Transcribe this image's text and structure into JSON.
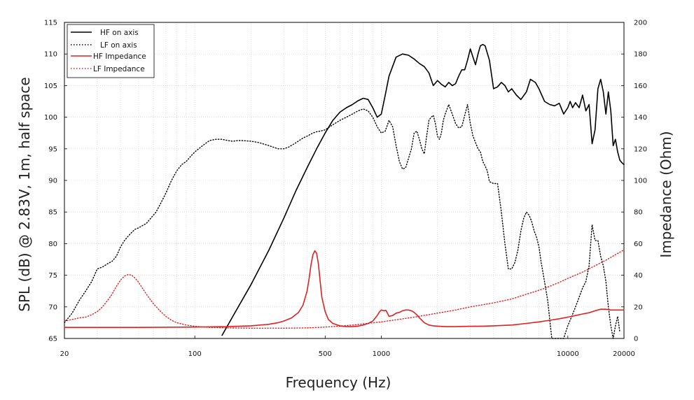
{
  "chart_data": {
    "type": "line",
    "xlabel": "Frequency (Hz)",
    "ylabel": "SPL (dB) @ 2.83V, 1m, half space",
    "y2label": "Impedance (Ohm)",
    "xscale": "log",
    "xlim": [
      20,
      20000
    ],
    "ylim": [
      65,
      115
    ],
    "y2lim": [
      0,
      200
    ],
    "x_ticks": [
      20,
      100,
      500,
      1000,
      10000,
      20000
    ],
    "x_tick_labels": [
      "20",
      "100",
      "500",
      "1000",
      "10000",
      "20000"
    ],
    "y_ticks": [
      65,
      70,
      75,
      80,
      85,
      90,
      95,
      100,
      105,
      110,
      115
    ],
    "y2_ticks": [
      0,
      20,
      40,
      60,
      80,
      100,
      120,
      140,
      160,
      180,
      200
    ],
    "grid": true,
    "legend_position": "top-left",
    "colors": {
      "hf": "#000000",
      "lf": "#000000",
      "hf_imp": "#e02020",
      "lf_imp": "#e02020"
    },
    "series": [
      {
        "name": "HF on axis",
        "axis": "left",
        "style": "solid",
        "color": "#000000",
        "x": [
          140,
          160,
          200,
          250,
          300,
          350,
          400,
          450,
          500,
          550,
          600,
          650,
          700,
          750,
          800,
          850,
          900,
          950,
          1000,
          1050,
          1100,
          1200,
          1300,
          1400,
          1500,
          1600,
          1700,
          1800,
          1900,
          2000,
          2100,
          2200,
          2300,
          2400,
          2500,
          2600,
          2700,
          2800,
          2900,
          3000,
          3100,
          3200,
          3300,
          3400,
          3500,
          3600,
          3800,
          4000,
          4200,
          4400,
          4600,
          4800,
          5000,
          5300,
          5600,
          6000,
          6300,
          6700,
          7000,
          7500,
          8000,
          8500,
          9000,
          9500,
          10000,
          10300,
          10600,
          11000,
          11500,
          12000,
          12500,
          13000,
          13500,
          14000,
          14500,
          15000,
          15500,
          16000,
          16500,
          17000,
          17500,
          18000,
          18500,
          19000,
          19500,
          20000
        ],
        "y": [
          65.5,
          68.5,
          73.5,
          79,
          84,
          88.5,
          92,
          95,
          97.5,
          99.5,
          100.8,
          101.5,
          102,
          102.6,
          103,
          102.8,
          101.5,
          100,
          100.5,
          103.5,
          106.5,
          109.5,
          110,
          109.8,
          109.2,
          108.5,
          108,
          107,
          105,
          105.8,
          105.2,
          104.8,
          105.5,
          105,
          105.3,
          106.5,
          107.5,
          107.5,
          109,
          110.8,
          109.5,
          108.3,
          110,
          111.3,
          111.5,
          111.3,
          109,
          104.5,
          104.8,
          105.5,
          105,
          104,
          104.5,
          103.5,
          102.8,
          104,
          106,
          105.5,
          104.5,
          102.5,
          102,
          101.8,
          102.2,
          100.5,
          101.5,
          102.5,
          101.5,
          102.3,
          101.5,
          103.5,
          101,
          102,
          95.8,
          98,
          104.5,
          106,
          104,
          100.5,
          104,
          101,
          95.5,
          96.5,
          94.5,
          93.2,
          92.8,
          92.5
        ]
      },
      {
        "name": "LF on axis",
        "axis": "left",
        "style": "dotted",
        "color": "#000000",
        "x": [
          20,
          22,
          24,
          26,
          28,
          30,
          32,
          34,
          36,
          38,
          40,
          42,
          44,
          46,
          48,
          50,
          52,
          55,
          58,
          62,
          66,
          70,
          75,
          80,
          85,
          90,
          95,
          100,
          110,
          120,
          130,
          140,
          150,
          160,
          170,
          180,
          200,
          220,
          250,
          280,
          300,
          320,
          350,
          380,
          400,
          430,
          450,
          470,
          500,
          550,
          600,
          650,
          700,
          750,
          800,
          850,
          900,
          950,
          1000,
          1050,
          1100,
          1150,
          1200,
          1250,
          1300,
          1350,
          1400,
          1450,
          1500,
          1550,
          1600,
          1650,
          1700,
          1750,
          1800,
          1850,
          1900,
          1950,
          2000,
          2050,
          2100,
          2150,
          2200,
          2300,
          2400,
          2500,
          2600,
          2700,
          2800,
          2900,
          3000,
          3100,
          3200,
          3300,
          3400,
          3500,
          3600,
          3700,
          3800,
          4000,
          4200,
          4400,
          4600,
          4800,
          5000,
          5200,
          5400,
          5600,
          5800,
          6000,
          6200,
          6400,
          6600,
          6800,
          7000,
          7200,
          7400,
          7600,
          7800,
          8000,
          8200,
          8400,
          8600,
          9000,
          9500,
          10000,
          10500,
          11000,
          11500,
          12000,
          12500,
          13000,
          13500,
          14000,
          14500,
          15000,
          15500,
          16000,
          16500,
          17000,
          17500,
          18000,
          18500,
          19000
        ],
        "y": [
          67.5,
          69,
          71,
          72.5,
          74,
          76,
          76.3,
          76.8,
          77.2,
          78,
          79.5,
          80.5,
          81.2,
          81.8,
          82.3,
          82.5,
          82.8,
          83.2,
          84,
          85,
          86.5,
          88,
          90,
          91.5,
          92.5,
          93,
          93.8,
          94.5,
          95.5,
          96.3,
          96.5,
          96.5,
          96.3,
          96.2,
          96.3,
          96.3,
          96.2,
          96,
          95.5,
          95,
          95,
          95.3,
          96,
          96.7,
          97,
          97.5,
          97.7,
          97.8,
          98,
          98.8,
          99.5,
          100,
          100.5,
          101,
          101.3,
          101,
          100,
          98.5,
          97.5,
          97.8,
          99.5,
          98.5,
          95.5,
          93,
          91.8,
          92,
          93.5,
          95,
          97.5,
          97.8,
          96.5,
          95,
          94.2,
          97,
          99.5,
          100,
          100.3,
          99,
          97,
          96.5,
          97.5,
          99.5,
          100.5,
          102,
          100.5,
          99,
          98.3,
          98.5,
          100.3,
          102,
          99,
          97,
          96,
          95,
          94.5,
          93,
          92.3,
          91.5,
          89.8,
          89.5,
          89.5,
          85,
          80,
          76,
          76,
          77,
          79,
          82,
          84,
          85,
          84.5,
          83.5,
          82,
          81,
          79.5,
          77,
          75,
          73,
          71,
          68,
          65,
          65,
          65,
          65,
          65,
          67,
          68.5,
          70,
          71.5,
          73,
          74,
          76.5,
          83,
          80.5,
          80.5,
          78,
          76.5,
          74,
          70,
          67,
          65,
          67,
          68.5,
          66
        ]
      },
      {
        "name": "HF Impedance",
        "axis": "right",
        "style": "solid",
        "color": "#e02020",
        "x": [
          20,
          50,
          100,
          150,
          200,
          250,
          280,
          300,
          330,
          360,
          380,
          400,
          410,
          420,
          430,
          440,
          450,
          460,
          470,
          480,
          500,
          520,
          550,
          600,
          650,
          700,
          750,
          800,
          850,
          900,
          950,
          980,
          1000,
          1030,
          1060,
          1100,
          1150,
          1200,
          1250,
          1300,
          1350,
          1400,
          1450,
          1500,
          1550,
          1600,
          1700,
          1800,
          1900,
          2000,
          2200,
          2500,
          3000,
          3500,
          4000,
          5000,
          6000,
          7000,
          8000,
          9000,
          10000,
          11000,
          12000,
          13000,
          14000,
          15000,
          16000,
          17000,
          18000,
          19000,
          20000
        ],
        "y": [
          7,
          7,
          7.2,
          7.5,
          8,
          9,
          10,
          11,
          13,
          16.5,
          21,
          30,
          38,
          47,
          53,
          55.5,
          54,
          47,
          36,
          26,
          17,
          12,
          9.5,
          8,
          7.5,
          7.5,
          7.8,
          8.5,
          9.5,
          11,
          14.5,
          17,
          18,
          17.5,
          17.8,
          14,
          14.5,
          16,
          16.5,
          17.5,
          18,
          18,
          17.5,
          16.5,
          15,
          13,
          10,
          8.5,
          8,
          7.8,
          7.5,
          7.5,
          7.7,
          7.8,
          8,
          8.5,
          9.5,
          10.5,
          11.5,
          12.5,
          13.5,
          14.5,
          15.5,
          16.3,
          17.5,
          18.5,
          18.5,
          18,
          18,
          18,
          18
        ]
      },
      {
        "name": "LF Impedance",
        "axis": "right",
        "style": "dotted",
        "color": "#e02020",
        "x": [
          20,
          22,
          24,
          26,
          28,
          30,
          32,
          34,
          36,
          38,
          40,
          42,
          44,
          46,
          48,
          50,
          55,
          60,
          65,
          70,
          75,
          80,
          90,
          100,
          120,
          150,
          200,
          300,
          400,
          500,
          600,
          700,
          800,
          1000,
          1200,
          1500,
          2000,
          2500,
          3000,
          4000,
          5000,
          6000,
          7000,
          8000,
          9000,
          10000,
          12000,
          14000,
          16000,
          18000,
          20000
        ],
        "y": [
          11,
          12,
          13,
          13.5,
          15,
          17,
          20,
          24,
          28,
          33,
          37,
          39.5,
          40.5,
          40,
          38,
          35.5,
          28,
          22,
          17.5,
          14,
          11.5,
          10,
          8.5,
          7.7,
          7,
          6.7,
          6.5,
          6.5,
          6.7,
          7.2,
          7.8,
          8.5,
          9.2,
          10.5,
          11.8,
          13.5,
          16,
          18,
          20,
          22.5,
          25,
          28,
          30.5,
          33,
          35.5,
          38,
          42,
          46,
          49.5,
          53,
          56
        ]
      }
    ]
  }
}
